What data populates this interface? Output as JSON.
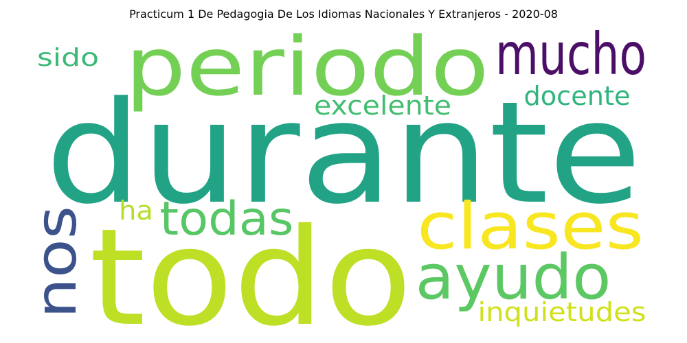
{
  "title": "Practicum 1 De Pedagogia De Los Idiomas Nacionales Y Extranjeros - 2020-08",
  "words": [
    {
      "id": "durante",
      "text": "durante",
      "color": "#22a386"
    },
    {
      "id": "todo",
      "text": "todo",
      "color": "#bddf26"
    },
    {
      "id": "periodo",
      "text": "periodo",
      "color": "#74d055"
    },
    {
      "id": "mucho",
      "text": "mucho",
      "color": "#4b0f67"
    },
    {
      "id": "clases",
      "text": "clases",
      "color": "#f8e621"
    },
    {
      "id": "ayudo",
      "text": "ayudo",
      "color": "#5cc863"
    },
    {
      "id": "nos",
      "text": "nos",
      "color": "#3b528b"
    },
    {
      "id": "todas",
      "text": "todas",
      "color": "#57c665"
    },
    {
      "id": "excelente",
      "text": "excelente",
      "color": "#42be71"
    },
    {
      "id": "docente",
      "text": "docente",
      "color": "#2fb47c"
    },
    {
      "id": "sido",
      "text": "sido",
      "color": "#3aba76"
    },
    {
      "id": "ha",
      "text": "ha",
      "color": "#b5de2b"
    },
    {
      "id": "inquietudes",
      "text": "inquietudes",
      "color": "#d0e11c"
    }
  ]
}
